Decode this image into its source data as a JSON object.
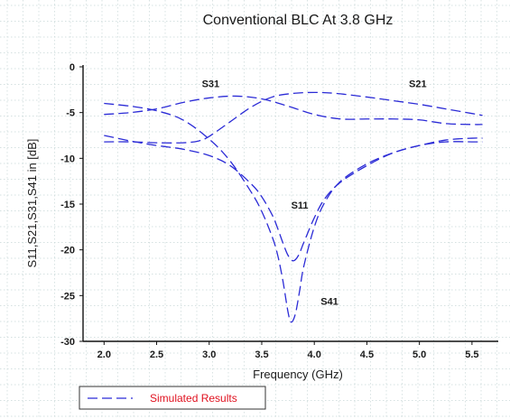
{
  "chart_data": {
    "type": "line",
    "title": "Conventional BLC At 3.8 GHz",
    "xlabel": "Frequency (GHz)",
    "ylabel": "S11,S21,S31,S41 in [dB]",
    "xlim": [
      1.8,
      5.75
    ],
    "ylim": [
      -30,
      0
    ],
    "xticks": [
      2.0,
      2.5,
      3.0,
      3.5,
      4.0,
      4.5,
      5.0,
      5.5
    ],
    "xtick_labels": [
      "2.0",
      "2.5",
      "3.0",
      "3.5",
      "4.0",
      "4.5",
      "5.0",
      "5.5"
    ],
    "yticks": [
      0,
      -5,
      -10,
      -15,
      -20,
      -25,
      -30
    ],
    "ytick_labels": [
      "0",
      "-5",
      "-10",
      "-15",
      "-20",
      "-25",
      "-30"
    ],
    "grid": "dotted",
    "series_color": "#2b2bd6",
    "line_style": "dashed",
    "legend_position": "bottom-left",
    "legend": {
      "label": "Simulated Results",
      "text_color": "#e0101e"
    },
    "series": [
      {
        "name": "S11",
        "x": [
          2.0,
          2.25,
          2.5,
          2.75,
          3.0,
          3.2,
          3.4,
          3.5,
          3.6,
          3.65,
          3.7,
          3.75,
          3.8,
          3.85,
          3.9,
          4.0,
          4.1,
          4.25,
          4.5,
          4.75,
          5.0,
          5.25,
          5.5,
          5.6
        ],
        "y": [
          -7.5,
          -8.1,
          -8.6,
          -9.0,
          -9.7,
          -10.8,
          -12.8,
          -14.2,
          -16.2,
          -17.6,
          -19.2,
          -20.6,
          -21.2,
          -20.6,
          -19.2,
          -16.5,
          -14.4,
          -12.6,
          -10.8,
          -9.4,
          -8.6,
          -8.0,
          -7.8,
          -7.8
        ]
      },
      {
        "name": "S21",
        "x": [
          2.0,
          2.25,
          2.5,
          2.75,
          2.9,
          3.0,
          3.2,
          3.4,
          3.6,
          3.8,
          4.0,
          4.2,
          4.5,
          4.75,
          5.0,
          5.25,
          5.5,
          5.6
        ],
        "y": [
          -8.2,
          -8.2,
          -8.3,
          -8.3,
          -8.1,
          -7.6,
          -6.0,
          -4.4,
          -3.3,
          -2.9,
          -2.8,
          -2.9,
          -3.3,
          -3.7,
          -4.1,
          -4.6,
          -5.1,
          -5.3
        ]
      },
      {
        "name": "S31",
        "x": [
          2.0,
          2.25,
          2.5,
          2.75,
          3.0,
          3.25,
          3.5,
          3.75,
          4.0,
          4.25,
          4.5,
          4.75,
          5.0,
          5.25,
          5.5,
          5.6
        ],
        "y": [
          -5.2,
          -5.0,
          -4.6,
          -3.9,
          -3.4,
          -3.2,
          -3.5,
          -4.3,
          -5.2,
          -5.7,
          -5.7,
          -5.7,
          -5.8,
          -6.2,
          -6.3,
          -6.3
        ]
      },
      {
        "name": "S41",
        "x": [
          2.0,
          2.25,
          2.5,
          2.75,
          3.0,
          3.2,
          3.4,
          3.5,
          3.6,
          3.65,
          3.7,
          3.75,
          3.78,
          3.82,
          3.86,
          3.9,
          4.0,
          4.1,
          4.25,
          4.5,
          4.75,
          5.0,
          5.25,
          5.5,
          5.6
        ],
        "y": [
          -4.0,
          -4.3,
          -4.8,
          -5.8,
          -7.9,
          -10.3,
          -13.7,
          -15.8,
          -18.6,
          -20.5,
          -23.3,
          -26.8,
          -27.9,
          -27.0,
          -24.5,
          -21.8,
          -17.5,
          -14.8,
          -12.5,
          -10.6,
          -9.4,
          -8.6,
          -8.2,
          -8.2,
          -8.2
        ]
      }
    ],
    "annotations": [
      {
        "text": "S31",
        "x": 2.93,
        "y": -2.2
      },
      {
        "text": "S21",
        "x": 4.9,
        "y": -2.2
      },
      {
        "text": "S11",
        "x": 3.78,
        "y": -15.5
      },
      {
        "text": "S41",
        "x": 4.06,
        "y": -26.0
      }
    ]
  }
}
